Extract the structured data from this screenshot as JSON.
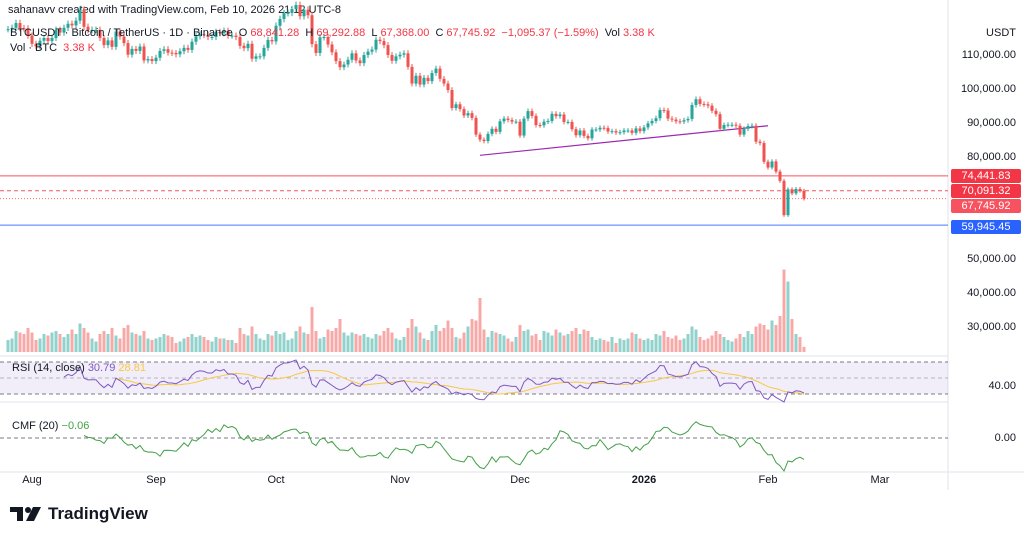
{
  "header": {
    "credit": "sahanavv created with TradingView.com, Feb 10, 2026 21:12 UTC-8",
    "symbol": "BTCUSDT · Bitcoin / TetherUS · 1D · Binance",
    "open_label": "O",
    "open": "68,841.28",
    "high_label": "H",
    "high": "69,292.88",
    "low_label": "L",
    "low": "67,368.00",
    "close_label": "C",
    "close": "67,745.92",
    "change": "−1,095.37 (−1.59%)",
    "vol_label": "Vol",
    "vol": "3.38 K",
    "vol_row_label": "Vol · BTC",
    "vol_row_value": "3.38 K"
  },
  "indicators": {
    "rsi_label": "RSI (14, close)",
    "rsi_value": "30.79",
    "rsi_ma_value": "28.81",
    "cmf_label": "CMF (20)",
    "cmf_value": "−0.06"
  },
  "price_axis": {
    "currency": "USDT",
    "ticks": [
      "110,000.00",
      "100,000.00",
      "90,000.00",
      "80,000.00",
      "50,000.00",
      "40,000.00",
      "30,000.00"
    ],
    "tick_values": [
      110000,
      100000,
      90000,
      80000,
      50000,
      40000,
      30000
    ],
    "rsi_tick": "40.00",
    "cmf_tick": "0.00"
  },
  "price_tags": [
    {
      "label": "74,441.83",
      "value": 74441.83,
      "color": "#f23645",
      "line": "solid"
    },
    {
      "label": "70,091.32",
      "value": 70091.32,
      "color": "#f23645",
      "line": "dashed"
    },
    {
      "label": "67,745.92",
      "value": 67745.92,
      "color": "#f7525f",
      "line": "dotted"
    },
    {
      "label": "59,945.45",
      "value": 59945.45,
      "color": "#2962ff",
      "line": "solid"
    }
  ],
  "time_axis": [
    {
      "label": "Aug",
      "date": "2025-08-01"
    },
    {
      "label": "Sep",
      "date": "2025-09-01"
    },
    {
      "label": "Oct",
      "date": "2025-10-01"
    },
    {
      "label": "Nov",
      "date": "2025-11-01"
    },
    {
      "label": "Dec",
      "date": "2025-12-01"
    },
    {
      "label": "2026",
      "date": "2026-01-01",
      "bold": true
    },
    {
      "label": "Feb",
      "date": "2026-02-01"
    },
    {
      "label": "Mar",
      "date": "2026-03-01"
    }
  ],
  "brand": {
    "name": "TradingView"
  },
  "colors": {
    "up": "#26a69a",
    "down": "#ef5350",
    "rsi": "#7e57c2",
    "rsi_ma": "#f7c843",
    "cmf": "#43a047",
    "trendline": "#9c27b0"
  },
  "chart_data": {
    "type": "candlestick",
    "interval": "1D",
    "first_date": "2025-07-26",
    "last_date": "2026-02-10",
    "close": [
      117600,
      118000,
      119400,
      117900,
      117800,
      115700,
      113300,
      112500,
      114200,
      115000,
      114100,
      115000,
      117400,
      116600,
      118000,
      119200,
      118700,
      120100,
      123300,
      118300,
      117300,
      117400,
      117400,
      115000,
      112900,
      114300,
      112400,
      116900,
      115400,
      113500,
      110100,
      111800,
      111200,
      112500,
      108400,
      108800,
      108200,
      109200,
      111200,
      111700,
      110700,
      110600,
      110200,
      111100,
      112100,
      111500,
      113900,
      115500,
      116100,
      115900,
      115300,
      115300,
      116800,
      116400,
      117100,
      115700,
      115700,
      115300,
      112700,
      112000,
      113300,
      108900,
      109600,
      109600,
      112100,
      114400,
      114000,
      118600,
      120600,
      122300,
      122400,
      123500,
      124700,
      121400,
      123300,
      121700,
      113200,
      110600,
      115200,
      115300,
      113100,
      110800,
      108200,
      106400,
      107200,
      108600,
      110500,
      108400,
      107600,
      110000,
      111000,
      111600,
      114500,
      114100,
      112900,
      110000,
      108300,
      109600,
      110100,
      110500,
      106500,
      101600,
      103900,
      101300,
      103300,
      102300,
      104700,
      106000,
      103000,
      101600,
      99700,
      94400,
      95500,
      94100,
      92200,
      92900,
      91500,
      86600,
      85100,
      84700,
      86800,
      88300,
      87400,
      90500,
      91300,
      90900,
      90400,
      90400,
      86300,
      91300,
      93500,
      92100,
      89400,
      89300,
      90400,
      90600,
      92700,
      92000,
      92500,
      90300,
      90300,
      88200,
      86400,
      87800,
      86200,
      85500,
      88100,
      88100,
      88600,
      88500,
      87500,
      87600,
      87200,
      87300,
      87800,
      87800,
      87100,
      88400,
      87600,
      88700,
      89900,
      90600,
      91400,
      93800,
      93700,
      91300,
      91000,
      90500,
      90400,
      90800,
      91200,
      95300,
      97000,
      95600,
      95500,
      95100,
      93600,
      92600,
      88300,
      89400,
      89500,
      89500,
      89200,
      86600,
      88300,
      89100,
      89200,
      84500,
      84100,
      78600,
      76900,
      78700,
      75700,
      73000,
      62900,
      70500,
      69300,
      70600,
      70100,
      67746
    ],
    "volume_k": [
      8,
      9,
      14,
      13,
      12,
      16,
      13,
      8,
      9,
      12,
      11,
      13,
      14,
      12,
      10,
      12,
      15,
      12,
      19,
      16,
      13,
      9,
      7,
      12,
      14,
      12,
      16,
      11,
      9,
      16,
      18,
      13,
      12,
      11,
      14,
      9,
      8,
      9,
      10,
      12,
      11,
      10,
      6,
      7,
      9,
      10,
      12,
      10,
      11,
      10,
      8,
      7,
      10,
      9,
      9,
      8,
      8,
      6,
      16,
      12,
      11,
      17,
      12,
      9,
      8,
      12,
      11,
      14,
      12,
      13,
      8,
      9,
      14,
      17,
      13,
      12,
      30,
      14,
      9,
      10,
      15,
      14,
      16,
      22,
      13,
      11,
      13,
      12,
      11,
      12,
      10,
      9,
      12,
      11,
      14,
      16,
      13,
      9,
      8,
      10,
      16,
      22,
      17,
      13,
      9,
      8,
      14,
      18,
      14,
      16,
      21,
      16,
      10,
      9,
      13,
      17,
      22,
      21,
      36,
      15,
      10,
      14,
      13,
      12,
      11,
      9,
      7,
      10,
      18,
      14,
      15,
      11,
      12,
      8,
      14,
      13,
      11,
      15,
      13,
      11,
      12,
      14,
      16,
      12,
      15,
      14,
      10,
      8,
      9,
      8,
      7,
      10,
      6,
      9,
      8,
      9,
      13,
      12,
      9,
      8,
      9,
      8,
      12,
      11,
      14,
      10,
      9,
      11,
      8,
      9,
      12,
      17,
      15,
      10,
      8,
      9,
      11,
      14,
      12,
      10,
      8,
      7,
      9,
      12,
      10,
      14,
      12,
      17,
      19,
      18,
      15,
      21,
      18,
      24,
      55,
      47,
      22,
      12,
      10,
      3.38
    ],
    "trendline": {
      "from": {
        "date": "2025-11-21",
        "price": 80500
      },
      "to": {
        "date": "2026-02-01",
        "price": 89200
      }
    },
    "rsi_bands": [
      70,
      50,
      30
    ],
    "grid": false,
    "y_scale": "linear"
  }
}
